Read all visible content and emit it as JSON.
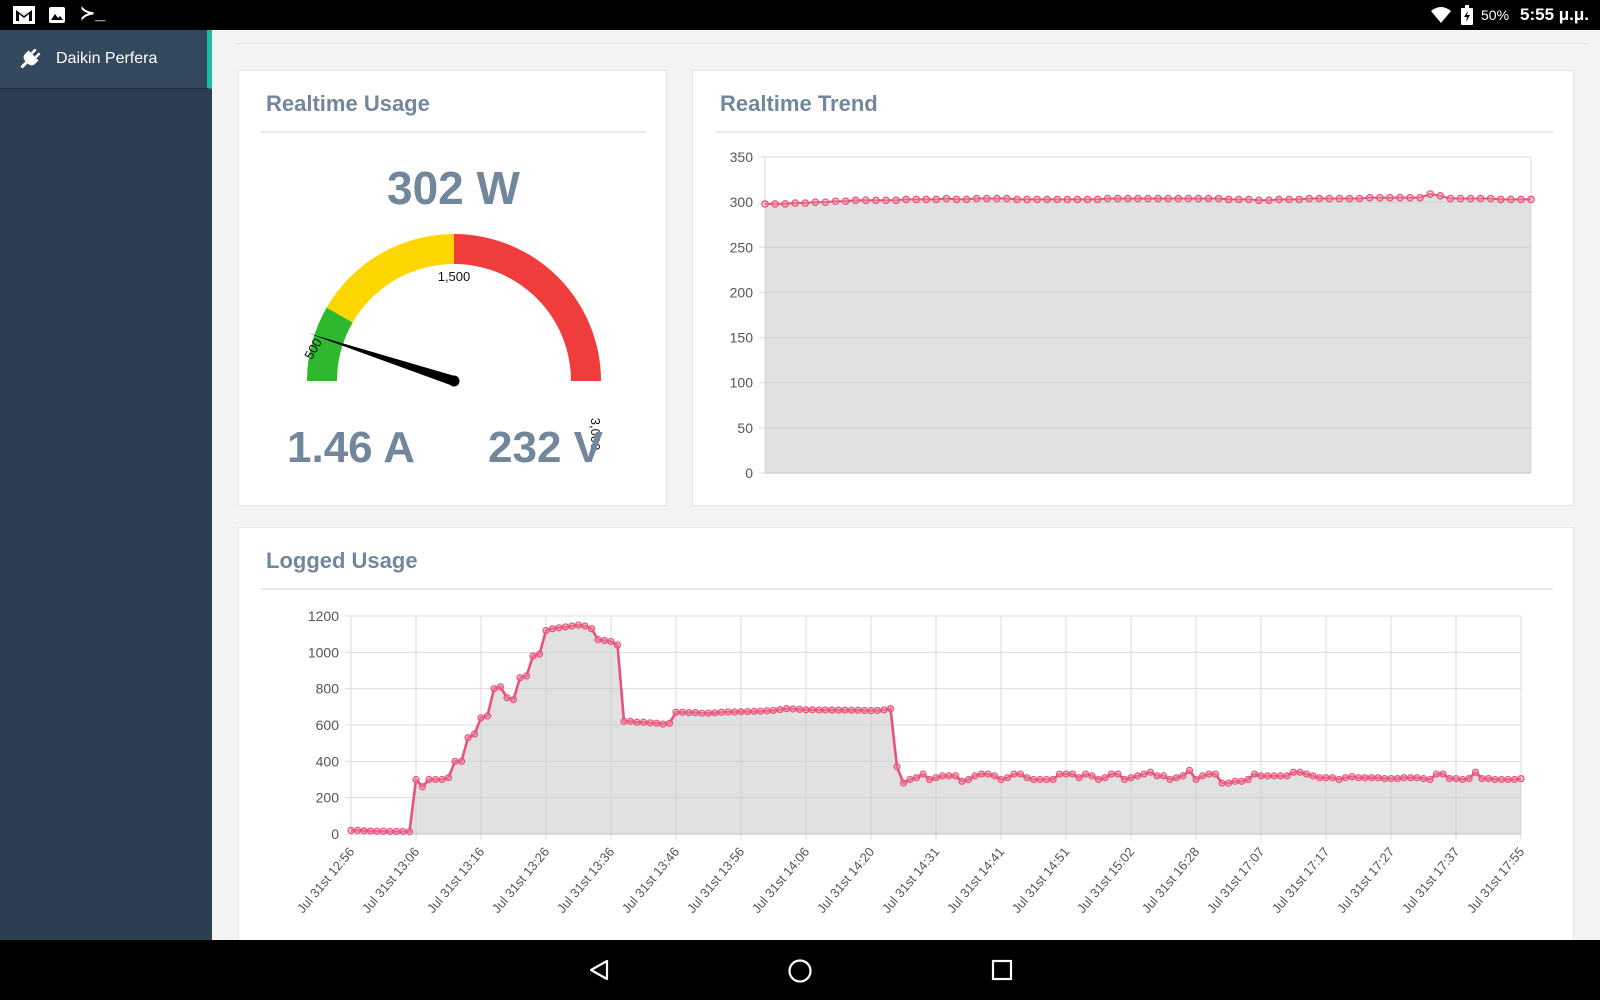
{
  "status_bar": {
    "icons": [
      "gmail-icon",
      "gallery-icon",
      "terminal-icon",
      "wifi-icon",
      "battery-icon"
    ],
    "terminal_glyph": "≻_",
    "battery": "50%",
    "time": "5:55 μ.μ."
  },
  "sidebar": {
    "items": [
      {
        "label": "Daikin Perfera",
        "icon": "plug-icon",
        "active": true
      }
    ]
  },
  "realtime_usage": {
    "title": "Realtime Usage",
    "power": "302 W",
    "current": "1.46 A",
    "voltage": "232 V",
    "gauge": {
      "value": 302,
      "min": 0,
      "max": 3000,
      "bands": [
        {
          "from": 0,
          "to": 500,
          "color": "#2eb82e"
        },
        {
          "from": 500,
          "to": 1500,
          "color": "#ffd700"
        },
        {
          "from": 1500,
          "to": 3000,
          "color": "#ef3d3d"
        }
      ],
      "labels": [
        "500",
        "1,500",
        "3,000"
      ]
    }
  },
  "realtime_trend": {
    "title": "Realtime Trend",
    "chart_data": {
      "type": "area",
      "y_ticks": [
        "350",
        "300",
        "250",
        "200",
        "150",
        "100",
        "50",
        "0"
      ],
      "ylim": [
        0,
        350
      ],
      "grid": true,
      "values": [
        298,
        298,
        298,
        299,
        299,
        300,
        300,
        301,
        301,
        302,
        302,
        302,
        302,
        302,
        303,
        303,
        303,
        303,
        304,
        303,
        303,
        304,
        304,
        304,
        304,
        303,
        303,
        303,
        303,
        303,
        303,
        303,
        303,
        303,
        304,
        304,
        304,
        304,
        304,
        304,
        304,
        304,
        304,
        304,
        304,
        304,
        303,
        303,
        303,
        302,
        302,
        303,
        303,
        303,
        304,
        304,
        304,
        304,
        304,
        304,
        305,
        305,
        305,
        305,
        305,
        305,
        309,
        307,
        304,
        304,
        304,
        304,
        304,
        303,
        303,
        303,
        303
      ]
    }
  },
  "logged_usage": {
    "title": "Logged Usage",
    "chart_data": {
      "type": "area",
      "y_ticks": [
        "1200",
        "1000",
        "800",
        "600",
        "400",
        "200",
        "0"
      ],
      "ylim": [
        0,
        1200
      ],
      "grid": true,
      "x_labels": [
        "Jul 31st 12:56",
        "Jul 31st 13:06",
        "Jul 31st 13:16",
        "Jul 31st 13:26",
        "Jul 31st 13:36",
        "Jul 31st 13:46",
        "Jul 31st 13:56",
        "Jul 31st 14:06",
        "Jul 31st 14:20",
        "Jul 31st 14:31",
        "Jul 31st 14:41",
        "Jul 31st 14:51",
        "Jul 31st 15:02",
        "Jul 31st 16:28",
        "Jul 31st 17:07",
        "Jul 31st 17:17",
        "Jul 31st 17:27",
        "Jul 31st 17:37",
        "Jul 31st 17:55"
      ],
      "values": [
        20,
        20,
        18,
        16,
        15,
        15,
        14,
        14,
        14,
        13,
        300,
        260,
        300,
        300,
        300,
        310,
        400,
        400,
        530,
        550,
        640,
        650,
        800,
        810,
        750,
        740,
        860,
        870,
        980,
        990,
        1120,
        1130,
        1135,
        1140,
        1145,
        1150,
        1145,
        1130,
        1070,
        1065,
        1060,
        1040,
        620,
        620,
        615,
        615,
        612,
        610,
        605,
        610,
        670,
        670,
        668,
        668,
        665,
        665,
        667,
        670,
        672,
        672,
        673,
        674,
        675,
        676,
        678,
        680,
        685,
        690,
        688,
        686,
        684,
        684,
        683,
        683,
        682,
        682,
        682,
        681,
        681,
        680,
        679,
        680,
        683,
        690,
        370,
        280,
        300,
        310,
        330,
        300,
        310,
        320,
        320,
        320,
        290,
        300,
        320,
        330,
        330,
        320,
        300,
        310,
        330,
        330,
        310,
        300,
        300,
        300,
        300,
        330,
        330,
        330,
        310,
        330,
        320,
        300,
        310,
        330,
        330,
        300,
        310,
        320,
        330,
        340,
        320,
        320,
        300,
        310,
        320,
        350,
        300,
        320,
        330,
        330,
        280,
        280,
        290,
        290,
        300,
        330,
        320,
        320,
        320,
        320,
        320,
        340,
        340,
        330,
        320,
        310,
        310,
        310,
        300,
        310,
        315,
        310,
        310,
        310,
        310,
        305,
        305,
        305,
        310,
        310,
        310,
        305,
        300,
        330,
        330,
        305,
        305,
        300,
        305,
        340,
        305,
        305,
        300,
        300,
        300,
        300,
        305
      ]
    }
  }
}
